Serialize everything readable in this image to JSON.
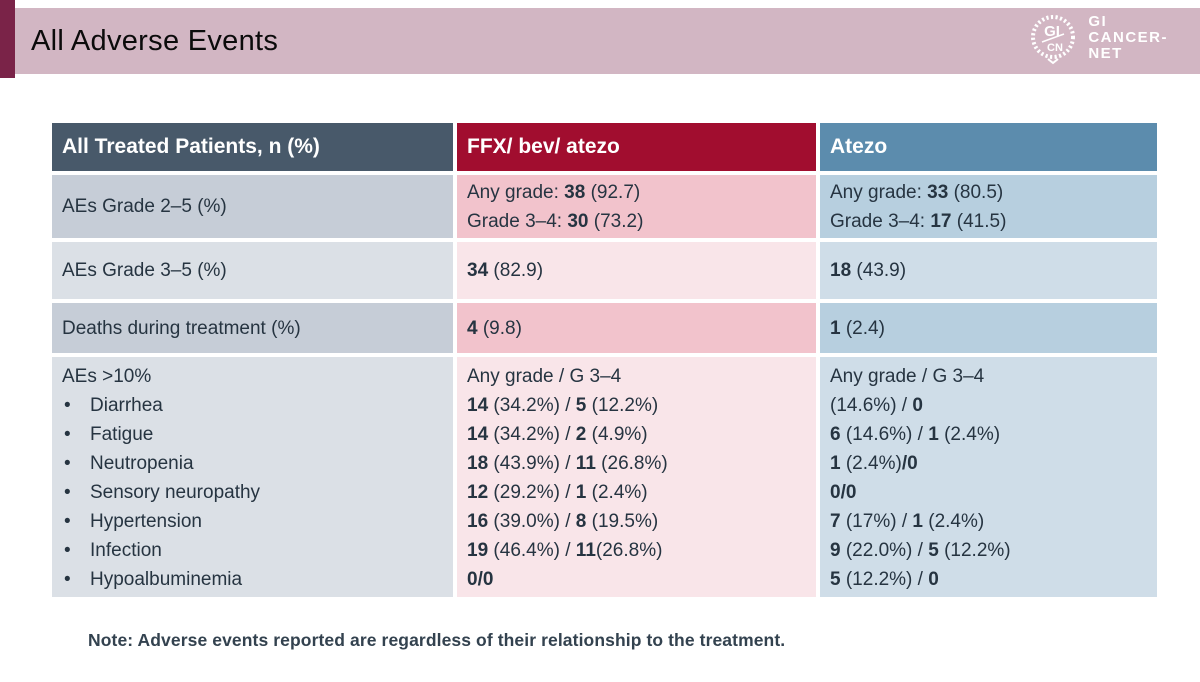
{
  "slide": {
    "title": "All Adverse Events",
    "note": "Note: Adverse events reported are regardless of their relationship to the treatment."
  },
  "logo": {
    "emblem_top": "GI",
    "emblem_bottom": "CN",
    "lines": [
      "GI",
      "CANCER-",
      "NET"
    ]
  },
  "colors": {
    "accent_bar": "#7a2348",
    "title_band": "#d2b6c3",
    "title_text": "#0b0b0b",
    "header_patients_bg": "#48596a",
    "header_ffx_bg": "#a10d2f",
    "header_atezo_bg": "#5c8cad",
    "header_text": "#ffffff",
    "col1_dark": "#c6cdd7",
    "col1_light": "#dbe0e6",
    "col2_dark": "#f2c3cc",
    "col2_light": "#f9e5e9",
    "col3_dark": "#b7cfdf",
    "col3_light": "#cfdde8",
    "cell_text": "#263441",
    "note_text": "#33424f",
    "logo_text": "#ffffff"
  },
  "table": {
    "headers": [
      "All Treated Patients, n (%)",
      "FFX/ bev/ atezo",
      "Atezo"
    ],
    "rows": [
      {
        "shade": "dark",
        "center": true,
        "cells": [
          {
            "lines": [
              {
                "segs": [
                  {
                    "t": "AEs Grade 2–5 (%)"
                  }
                ]
              }
            ]
          },
          {
            "lines": [
              {
                "segs": [
                  {
                    "t": "Any grade: "
                  },
                  {
                    "t": "38",
                    "b": true
                  },
                  {
                    "t": " (92.7)"
                  }
                ]
              },
              {
                "segs": [
                  {
                    "t": "Grade 3–4: "
                  },
                  {
                    "t": "30",
                    "b": true
                  },
                  {
                    "t": " (73.2)"
                  }
                ]
              }
            ]
          },
          {
            "lines": [
              {
                "segs": [
                  {
                    "t": "Any grade: "
                  },
                  {
                    "t": "33",
                    "b": true
                  },
                  {
                    "t": " (80.5)"
                  }
                ]
              },
              {
                "segs": [
                  {
                    "t": "Grade 3–4: "
                  },
                  {
                    "t": "17",
                    "b": true
                  },
                  {
                    "t": " (41.5)"
                  }
                ]
              }
            ]
          }
        ]
      },
      {
        "shade": "light",
        "center": true,
        "cells": [
          {
            "lines": [
              {
                "segs": [
                  {
                    "t": "AEs Grade 3–5 (%)"
                  }
                ]
              }
            ]
          },
          {
            "lines": [
              {
                "segs": [
                  {
                    "t": "34",
                    "b": true
                  },
                  {
                    "t": " (82.9)"
                  }
                ]
              }
            ]
          },
          {
            "lines": [
              {
                "segs": [
                  {
                    "t": "18",
                    "b": true
                  },
                  {
                    "t": " (43.9)"
                  }
                ]
              }
            ]
          }
        ]
      },
      {
        "shade": "dark",
        "center": true,
        "cells": [
          {
            "lines": [
              {
                "segs": [
                  {
                    "t": "Deaths during treatment (%)"
                  }
                ]
              }
            ]
          },
          {
            "lines": [
              {
                "segs": [
                  {
                    "t": "4",
                    "b": true
                  },
                  {
                    "t": " (9.8)"
                  }
                ]
              }
            ]
          },
          {
            "lines": [
              {
                "segs": [
                  {
                    "t": "1",
                    "b": true
                  },
                  {
                    "t": " (2.4)"
                  }
                ]
              }
            ]
          }
        ]
      },
      {
        "shade": "light",
        "center": false,
        "cells": [
          {
            "lines": [
              {
                "segs": [
                  {
                    "t": "AEs >10%"
                  }
                ]
              },
              {
                "bullet": true,
                "segs": [
                  {
                    "t": "Diarrhea"
                  }
                ]
              },
              {
                "bullet": true,
                "segs": [
                  {
                    "t": "Fatigue"
                  }
                ]
              },
              {
                "bullet": true,
                "segs": [
                  {
                    "t": "Neutropenia"
                  }
                ]
              },
              {
                "bullet": true,
                "segs": [
                  {
                    "t": "Sensory neuropathy"
                  }
                ]
              },
              {
                "bullet": true,
                "segs": [
                  {
                    "t": "Hypertension"
                  }
                ]
              },
              {
                "bullet": true,
                "segs": [
                  {
                    "t": "Infection"
                  }
                ]
              },
              {
                "bullet": true,
                "segs": [
                  {
                    "t": "Hypoalbuminemia"
                  }
                ]
              }
            ]
          },
          {
            "lines": [
              {
                "segs": [
                  {
                    "t": "Any grade / G 3–4"
                  }
                ]
              },
              {
                "segs": [
                  {
                    "t": "14",
                    "b": true
                  },
                  {
                    "t": " (34.2%) / "
                  },
                  {
                    "t": "5",
                    "b": true
                  },
                  {
                    "t": " (12.2%)"
                  }
                ]
              },
              {
                "segs": [
                  {
                    "t": "14",
                    "b": true
                  },
                  {
                    "t": " (34.2%) / "
                  },
                  {
                    "t": "2",
                    "b": true
                  },
                  {
                    "t": " (4.9%)"
                  }
                ]
              },
              {
                "segs": [
                  {
                    "t": "18",
                    "b": true
                  },
                  {
                    "t": " (43.9%) / "
                  },
                  {
                    "t": "11",
                    "b": true
                  },
                  {
                    "t": " (26.8%)"
                  }
                ]
              },
              {
                "segs": [
                  {
                    "t": "12",
                    "b": true
                  },
                  {
                    "t": " (29.2%) / "
                  },
                  {
                    "t": "1",
                    "b": true
                  },
                  {
                    "t": " (2.4%)"
                  }
                ]
              },
              {
                "segs": [
                  {
                    "t": "16",
                    "b": true
                  },
                  {
                    "t": " (39.0%) / "
                  },
                  {
                    "t": "8",
                    "b": true
                  },
                  {
                    "t": " (19.5%)"
                  }
                ]
              },
              {
                "segs": [
                  {
                    "t": "19",
                    "b": true
                  },
                  {
                    "t": " (46.4%) / "
                  },
                  {
                    "t": "11",
                    "b": true
                  },
                  {
                    "t": "(26.8%)"
                  }
                ]
              },
              {
                "segs": [
                  {
                    "t": "0/0",
                    "b": true
                  }
                ]
              }
            ]
          },
          {
            "lines": [
              {
                "segs": [
                  {
                    "t": "Any grade / G 3–4"
                  }
                ]
              },
              {
                "segs": [
                  {
                    "t": "(14.6%) / "
                  },
                  {
                    "t": "0",
                    "b": true
                  }
                ]
              },
              {
                "segs": [
                  {
                    "t": "6",
                    "b": true
                  },
                  {
                    "t": " (14.6%) / "
                  },
                  {
                    "t": "1",
                    "b": true
                  },
                  {
                    "t": " (2.4%)"
                  }
                ]
              },
              {
                "segs": [
                  {
                    "t": "1",
                    "b": true
                  },
                  {
                    "t": " (2.4%)"
                  },
                  {
                    "t": "/0",
                    "b": true
                  }
                ]
              },
              {
                "segs": [
                  {
                    "t": "0/0",
                    "b": true
                  }
                ]
              },
              {
                "segs": [
                  {
                    "t": "7",
                    "b": true
                  },
                  {
                    "t": " (17%) / "
                  },
                  {
                    "t": "1",
                    "b": true
                  },
                  {
                    "t": " (2.4%)"
                  }
                ]
              },
              {
                "segs": [
                  {
                    "t": "9",
                    "b": true
                  },
                  {
                    "t": " (22.0%) / "
                  },
                  {
                    "t": "5",
                    "b": true
                  },
                  {
                    "t": " (12.2%)"
                  }
                ]
              },
              {
                "segs": [
                  {
                    "t": "5",
                    "b": true
                  },
                  {
                    "t": " (12.2%) / "
                  },
                  {
                    "t": "0",
                    "b": true
                  }
                ]
              }
            ]
          }
        ]
      }
    ]
  }
}
